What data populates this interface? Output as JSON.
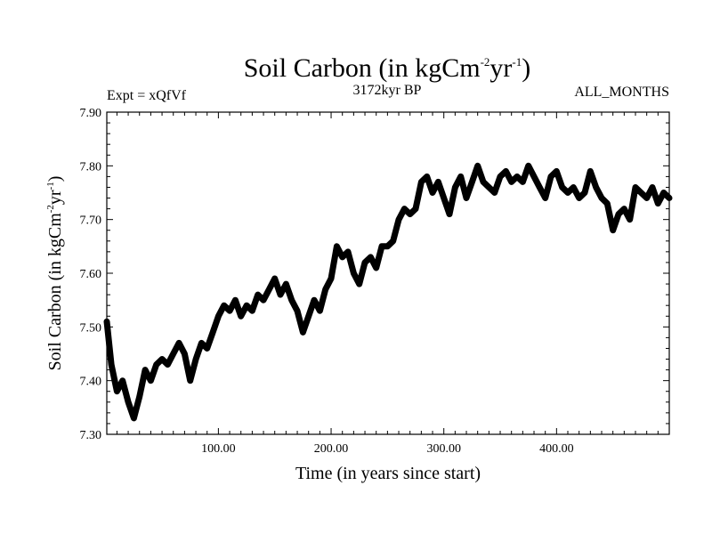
{
  "chart_data": {
    "type": "line",
    "title": {
      "main": "Soil Carbon (in kgCm",
      "sup1": "-2",
      "mid": "yr",
      "sup2": "-1",
      "end": ")"
    },
    "expt_label": "Expt = xQfVf",
    "period_label": "3172kyr BP",
    "months_label": "ALL_MONTHS",
    "xlabel": "Time (in years since start)",
    "ylabel": {
      "main": "Soil Carbon (in kgCm",
      "sup1": "-2",
      "mid": "yr",
      "sup2": "-1",
      "end": ")"
    },
    "xlim": [
      1,
      500
    ],
    "ylim": [
      7.3,
      7.9
    ],
    "x_ticks": [
      100,
      200,
      300,
      400
    ],
    "x_tick_labels": [
      "100.00",
      "200.00",
      "300.00",
      "400.00"
    ],
    "y_ticks": [
      7.3,
      7.4,
      7.5,
      7.6,
      7.7,
      7.8,
      7.9
    ],
    "y_tick_labels": [
      "7.30",
      "7.40",
      "7.50",
      "7.60",
      "7.70",
      "7.80",
      "7.90"
    ],
    "series": [
      {
        "name": "Soil Carbon",
        "color": "#000000",
        "x": [
          1,
          5,
          10,
          15,
          20,
          25,
          30,
          35,
          40,
          45,
          50,
          55,
          60,
          65,
          70,
          75,
          80,
          85,
          90,
          95,
          100,
          105,
          110,
          115,
          120,
          125,
          130,
          135,
          140,
          145,
          150,
          155,
          160,
          165,
          170,
          175,
          180,
          185,
          190,
          195,
          200,
          205,
          210,
          215,
          220,
          225,
          230,
          235,
          240,
          245,
          250,
          255,
          260,
          265,
          270,
          275,
          280,
          285,
          290,
          295,
          300,
          305,
          310,
          315,
          320,
          325,
          330,
          335,
          340,
          345,
          350,
          355,
          360,
          365,
          370,
          375,
          380,
          385,
          390,
          395,
          400,
          405,
          410,
          415,
          420,
          425,
          430,
          435,
          440,
          445,
          450,
          455,
          460,
          465,
          470,
          475,
          480,
          485,
          490,
          495,
          500
        ],
        "values": [
          7.51,
          7.43,
          7.38,
          7.4,
          7.36,
          7.33,
          7.37,
          7.42,
          7.4,
          7.43,
          7.44,
          7.43,
          7.45,
          7.47,
          7.45,
          7.4,
          7.44,
          7.47,
          7.46,
          7.49,
          7.52,
          7.54,
          7.53,
          7.55,
          7.52,
          7.54,
          7.53,
          7.56,
          7.55,
          7.57,
          7.59,
          7.56,
          7.58,
          7.55,
          7.53,
          7.49,
          7.52,
          7.55,
          7.53,
          7.57,
          7.59,
          7.65,
          7.63,
          7.64,
          7.6,
          7.58,
          7.62,
          7.63,
          7.61,
          7.65,
          7.65,
          7.66,
          7.7,
          7.72,
          7.71,
          7.72,
          7.77,
          7.78,
          7.75,
          7.77,
          7.74,
          7.71,
          7.76,
          7.78,
          7.74,
          7.77,
          7.8,
          7.77,
          7.76,
          7.75,
          7.78,
          7.79,
          7.77,
          7.78,
          7.77,
          7.8,
          7.78,
          7.76,
          7.74,
          7.78,
          7.79,
          7.76,
          7.75,
          7.76,
          7.74,
          7.75,
          7.79,
          7.76,
          7.74,
          7.73,
          7.68,
          7.71,
          7.72,
          7.7,
          7.76,
          7.75,
          7.74,
          7.76,
          7.73,
          7.75,
          7.74
        ]
      }
    ]
  }
}
